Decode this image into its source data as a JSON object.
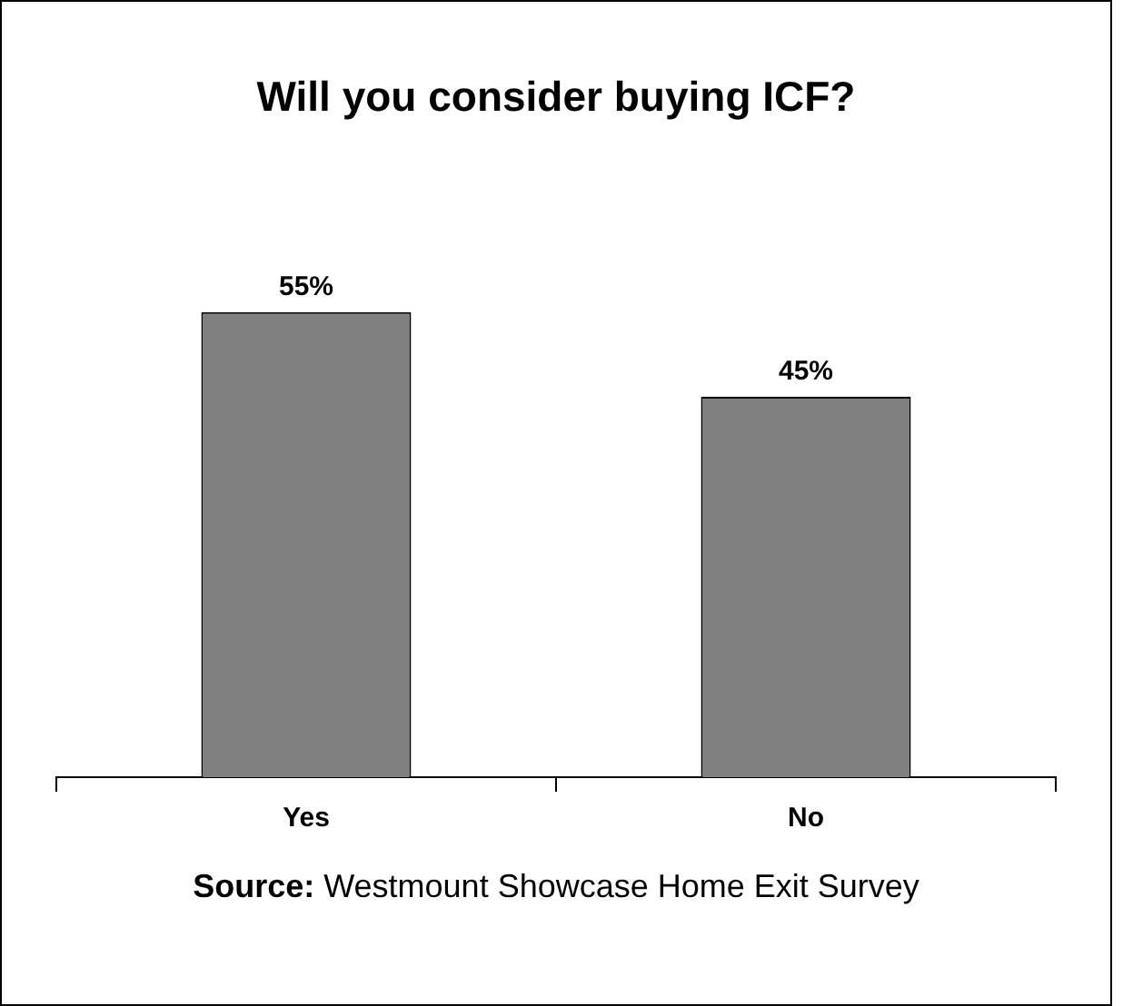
{
  "chart_data": {
    "type": "bar",
    "title": "Will you consider buying ICF?",
    "categories": [
      "Yes",
      "No"
    ],
    "values": [
      55,
      45
    ],
    "value_labels": [
      "55%",
      "45%"
    ],
    "color": "#808080",
    "grid": false,
    "legend": false,
    "annotations": [
      "Source: Westmount Showcase Home Exit Survey"
    ]
  }
}
